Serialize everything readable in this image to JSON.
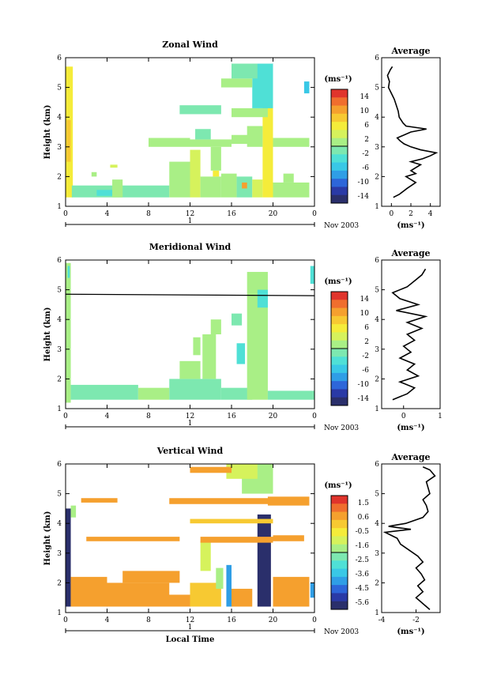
{
  "chart_data": [
    {
      "type": "heatmap",
      "title": "Zonal Wind",
      "ylabel": "Height (km)",
      "ylim": [
        1,
        6
      ],
      "xlim": [
        0,
        24
      ],
      "xticks": [
        "0",
        "4",
        "8",
        "12",
        "16",
        "20",
        "0"
      ],
      "yticks": [
        "1",
        "2",
        "3",
        "4",
        "5",
        "6"
      ],
      "date_label": "1",
      "month_label": "Nov 2003",
      "colorbar": {
        "unit": "(ms⁻¹)",
        "ticks": [
          "14",
          "10",
          "6",
          "2",
          "-2",
          "-6",
          "-10",
          "-14"
        ],
        "range": [
          -16,
          16
        ]
      },
      "cells": [
        {
          "x": [
            0,
            0.7
          ],
          "y": [
            1.3,
            5.7
          ],
          "v": 6
        },
        {
          "x": [
            0.1,
            0.5
          ],
          "y": [
            2.5,
            3.9
          ],
          "v": 9
        },
        {
          "x": [
            0.6,
            10
          ],
          "y": [
            1.3,
            1.7
          ],
          "v": -2
        },
        {
          "x": [
            3,
            4.5
          ],
          "y": [
            1.35,
            1.55
          ],
          "v": -3
        },
        {
          "x": [
            2.5,
            3
          ],
          "y": [
            2.0,
            2.15
          ],
          "v": 1
        },
        {
          "x": [
            4.5,
            5.5
          ],
          "y": [
            1.3,
            1.9
          ],
          "v": 2
        },
        {
          "x": [
            10,
            12
          ],
          "y": [
            1.3,
            2.5
          ],
          "v": 2
        },
        {
          "x": [
            12,
            13
          ],
          "y": [
            1.3,
            2.9
          ],
          "v": 4
        },
        {
          "x": [
            13,
            15
          ],
          "y": [
            1.3,
            2.0
          ],
          "v": 0
        },
        {
          "x": [
            14,
            15
          ],
          "y": [
            2.2,
            3.0
          ],
          "v": 2
        },
        {
          "x": [
            15,
            16.5
          ],
          "y": [
            1.3,
            2.1
          ],
          "v": 1
        },
        {
          "x": [
            16.5,
            18
          ],
          "y": [
            1.3,
            2.0
          ],
          "v": -1
        },
        {
          "x": [
            18,
            19
          ],
          "y": [
            1.3,
            1.9
          ],
          "v": 3
        },
        {
          "x": [
            19,
            20
          ],
          "y": [
            1.3,
            5.4
          ],
          "v": 5
        },
        {
          "x": [
            20,
            23.5
          ],
          "y": [
            1.3,
            1.8
          ],
          "v": 0
        },
        {
          "x": [
            21,
            22
          ],
          "y": [
            1.8,
            2.1
          ],
          "v": 2
        },
        {
          "x": [
            8,
            12
          ],
          "y": [
            3.0,
            3.3
          ],
          "v": 0
        },
        {
          "x": [
            12,
            16
          ],
          "y": [
            3.0,
            3.25
          ],
          "v": 1
        },
        {
          "x": [
            12.5,
            14
          ],
          "y": [
            3.25,
            3.6
          ],
          "v": -1
        },
        {
          "x": [
            16,
            18
          ],
          "y": [
            3.1,
            3.4
          ],
          "v": 1
        },
        {
          "x": [
            17.5,
            19
          ],
          "y": [
            3.0,
            3.7
          ],
          "v": 0
        },
        {
          "x": [
            20,
            23.5
          ],
          "y": [
            3.0,
            3.3
          ],
          "v": 2
        },
        {
          "x": [
            16,
            19.5
          ],
          "y": [
            4.0,
            4.3
          ],
          "v": 0
        },
        {
          "x": [
            11,
            15
          ],
          "y": [
            4.1,
            4.4
          ],
          "v": -2
        },
        {
          "x": [
            18,
            20
          ],
          "y": [
            4.3,
            5.8
          ],
          "v": -4
        },
        {
          "x": [
            15,
            18
          ],
          "y": [
            5.0,
            5.3
          ],
          "v": 0
        },
        {
          "x": [
            16,
            18.5
          ],
          "y": [
            5.3,
            5.8
          ],
          "v": -1
        },
        {
          "x": [
            23,
            23.5
          ],
          "y": [
            4.8,
            5.2
          ],
          "v": -6
        },
        {
          "x": [
            4.3,
            5
          ],
          "y": [
            2.3,
            2.4
          ],
          "v": 4
        },
        {
          "x": [
            14.2,
            14.8
          ],
          "y": [
            2.0,
            2.2
          ],
          "v": 6
        },
        {
          "x": [
            17,
            17.5
          ],
          "y": [
            1.6,
            1.8
          ],
          "v": 10
        }
      ],
      "profile": {
        "title": "Average",
        "xlim": [
          -1,
          5
        ],
        "xticks": [
          "0",
          "2",
          "4"
        ],
        "xlabel": "(ms⁻¹)",
        "heights": [
          1.3,
          1.4,
          1.6,
          1.8,
          2.0,
          2.1,
          2.2,
          2.4,
          2.5,
          2.6,
          2.7,
          2.8,
          2.9,
          3.0,
          3.1,
          3.2,
          3.3,
          3.5,
          3.6,
          3.7,
          3.8,
          4.0,
          4.2,
          4.4,
          4.6,
          4.8,
          5.0,
          5.2,
          5.4,
          5.6,
          5.7
        ],
        "values": [
          0.2,
          0.8,
          1.6,
          2.5,
          1.5,
          2.5,
          2.0,
          3.0,
          2.0,
          3.2,
          4.0,
          4.6,
          3.0,
          2.0,
          1.3,
          0.9,
          0.6,
          2.0,
          3.6,
          1.5,
          1.2,
          0.8,
          0.7,
          0.5,
          0.3,
          0.0,
          -0.3,
          -0.2,
          -0.4,
          -0.1,
          0.1
        ]
      }
    },
    {
      "type": "heatmap",
      "title": "Meridional Wind",
      "ylabel": "Height (km)",
      "ylim": [
        1,
        6
      ],
      "xlim": [
        0,
        24
      ],
      "xticks": [
        "0",
        "4",
        "8",
        "12",
        "16",
        "20",
        "0"
      ],
      "yticks": [
        "1",
        "2",
        "3",
        "4",
        "5",
        "6"
      ],
      "date_label": "1",
      "month_label": "Nov 2003",
      "colorbar": {
        "unit": "(ms⁻¹)",
        "ticks": [
          "14",
          "10",
          "6",
          "2",
          "-2",
          "-6",
          "-10",
          "-14"
        ],
        "range": [
          -16,
          16
        ]
      },
      "cells": [
        {
          "x": [
            0,
            0.5
          ],
          "y": [
            1.2,
            5.9
          ],
          "v": 1
        },
        {
          "x": [
            0.5,
            7
          ],
          "y": [
            1.3,
            1.8
          ],
          "v": -2
        },
        {
          "x": [
            7,
            10
          ],
          "y": [
            1.3,
            1.7
          ],
          "v": 0
        },
        {
          "x": [
            10,
            15
          ],
          "y": [
            1.3,
            2.0
          ],
          "v": -1
        },
        {
          "x": [
            15,
            18
          ],
          "y": [
            1.3,
            1.7
          ],
          "v": -2
        },
        {
          "x": [
            17.5,
            19.5
          ],
          "y": [
            1.3,
            5.6
          ],
          "v": 1
        },
        {
          "x": [
            18.5,
            19.5
          ],
          "y": [
            4.4,
            5.0
          ],
          "v": -4
        },
        {
          "x": [
            19.5,
            24
          ],
          "y": [
            1.3,
            1.6
          ],
          "v": -2
        },
        {
          "x": [
            11,
            13
          ],
          "y": [
            2.0,
            2.6
          ],
          "v": 0
        },
        {
          "x": [
            13.2,
            14.5
          ],
          "y": [
            2.0,
            3.5
          ],
          "v": 1
        },
        {
          "x": [
            12.3,
            13
          ],
          "y": [
            2.8,
            3.4
          ],
          "v": 0
        },
        {
          "x": [
            16.5,
            17.3
          ],
          "y": [
            2.5,
            3.2
          ],
          "v": -4
        },
        {
          "x": [
            14,
            15
          ],
          "y": [
            3.5,
            4.0
          ],
          "v": 0
        },
        {
          "x": [
            16,
            17
          ],
          "y": [
            3.8,
            4.2
          ],
          "v": -1
        },
        {
          "x": [
            23.6,
            24
          ],
          "y": [
            5.2,
            5.8
          ],
          "v": -3
        },
        {
          "x": [
            0.2,
            0.4
          ],
          "y": [
            5.4,
            5.8
          ],
          "v": -4
        }
      ],
      "hline": 4.85,
      "profile": {
        "title": "Average",
        "xlim": [
          -0.6,
          1
        ],
        "xticks": [
          "0",
          "1"
        ],
        "xlabel": "(ms⁻¹)",
        "heights": [
          1.3,
          1.5,
          1.7,
          1.9,
          2.1,
          2.3,
          2.5,
          2.7,
          2.9,
          3.1,
          3.3,
          3.5,
          3.7,
          3.9,
          4.1,
          4.3,
          4.5,
          4.7,
          4.9,
          5.1,
          5.3,
          5.5,
          5.7
        ],
        "values": [
          -0.3,
          0.1,
          0.3,
          -0.1,
          0.4,
          0.1,
          0.3,
          -0.1,
          0.2,
          0.0,
          0.3,
          0.1,
          0.5,
          0.1,
          0.6,
          -0.2,
          0.4,
          -0.1,
          -0.3,
          0.1,
          0.3,
          0.5,
          0.6
        ]
      }
    },
    {
      "type": "heatmap",
      "title": "Vertical Wind",
      "xlabel": "Local Time",
      "ylabel": "Height (km)",
      "ylim": [
        1,
        6
      ],
      "xlim": [
        0,
        24
      ],
      "xticks": [
        "0",
        "4",
        "8",
        "12",
        "16",
        "20",
        "0"
      ],
      "yticks": [
        "1",
        "2",
        "3",
        "4",
        "5",
        "6"
      ],
      "date_label": "1",
      "month_label": "Nov 2003",
      "colorbar": {
        "unit": "(ms⁻¹)",
        "ticks": [
          "1.5",
          "0.6",
          "-0.5",
          "-1.6",
          "-2.5",
          "-3.6",
          "-4.5",
          "-5.6"
        ],
        "range": [
          -6,
          2
        ]
      },
      "cells": [
        {
          "x": [
            0,
            0.5
          ],
          "y": [
            1.2,
            4.5
          ],
          "v": -6
        },
        {
          "x": [
            0.5,
            4
          ],
          "y": [
            1.2,
            2.2
          ],
          "v": 0.3
        },
        {
          "x": [
            1,
            10
          ],
          "y": [
            1.5,
            2.0
          ],
          "v": 0.8
        },
        {
          "x": [
            4,
            12
          ],
          "y": [
            1.2,
            1.6
          ],
          "v": 0.5
        },
        {
          "x": [
            5.5,
            11
          ],
          "y": [
            2.0,
            2.4
          ],
          "v": 0.3
        },
        {
          "x": [
            12,
            15
          ],
          "y": [
            1.2,
            2.0
          ],
          "v": 0.0
        },
        {
          "x": [
            15.5,
            16
          ],
          "y": [
            1.2,
            2.6
          ],
          "v": -4
        },
        {
          "x": [
            16,
            18
          ],
          "y": [
            1.2,
            1.8
          ],
          "v": 0.4
        },
        {
          "x": [
            18.5,
            19.8
          ],
          "y": [
            1.2,
            4.3
          ],
          "v": -6
        },
        {
          "x": [
            20,
            23.5
          ],
          "y": [
            1.2,
            2.2
          ],
          "v": 0.4
        },
        {
          "x": [
            14.5,
            15.2
          ],
          "y": [
            1.8,
            2.5
          ],
          "v": -2
        },
        {
          "x": [
            13,
            14
          ],
          "y": [
            2.4,
            3.4
          ],
          "v": -1
        },
        {
          "x": [
            1.5,
            5
          ],
          "y": [
            4.7,
            4.85
          ],
          "v": 0.5
        },
        {
          "x": [
            10,
            20
          ],
          "y": [
            4.65,
            4.85
          ],
          "v": 0.4
        },
        {
          "x": [
            19.5,
            23.5
          ],
          "y": [
            4.6,
            4.9
          ],
          "v": 0.3
        },
        {
          "x": [
            17,
            20
          ],
          "y": [
            5.0,
            6.0
          ],
          "v": -1.6
        },
        {
          "x": [
            15.5,
            18.5
          ],
          "y": [
            5.5,
            6.0
          ],
          "v": -1.2
        },
        {
          "x": [
            2,
            11
          ],
          "y": [
            3.4,
            3.55
          ],
          "v": 0.6
        },
        {
          "x": [
            13,
            20
          ],
          "y": [
            3.35,
            3.55
          ],
          "v": 0.5
        },
        {
          "x": [
            20,
            23
          ],
          "y": [
            3.4,
            3.6
          ],
          "v": 0.6
        },
        {
          "x": [
            12,
            20
          ],
          "y": [
            4.0,
            4.15
          ],
          "v": 0.2
        },
        {
          "x": [
            12,
            16
          ],
          "y": [
            5.7,
            5.9
          ],
          "v": 0.4
        },
        {
          "x": [
            23.6,
            24
          ],
          "y": [
            1.5,
            2.0
          ],
          "v": -4
        },
        {
          "x": [
            0.5,
            1
          ],
          "y": [
            4.2,
            4.6
          ],
          "v": -2
        }
      ],
      "profile": {
        "title": "Average",
        "xlim": [
          -4,
          -0.6
        ],
        "xticks": [
          "-4",
          "-2"
        ],
        "xlabel": "(ms⁻¹)",
        "heights": [
          1.1,
          1.3,
          1.5,
          1.7,
          1.9,
          2.1,
          2.3,
          2.5,
          2.7,
          2.9,
          3.1,
          3.3,
          3.5,
          3.7,
          3.8,
          3.9,
          4.0,
          4.2,
          4.4,
          4.6,
          4.8,
          5.0,
          5.2,
          5.4,
          5.6,
          5.8,
          5.9
        ],
        "values": [
          -1.2,
          -1.6,
          -2.0,
          -1.6,
          -1.9,
          -1.5,
          -1.7,
          -2.0,
          -1.6,
          -1.9,
          -2.4,
          -2.9,
          -3.1,
          -3.8,
          -2.3,
          -3.6,
          -2.6,
          -1.6,
          -1.3,
          -1.4,
          -1.6,
          -1.2,
          -1.3,
          -1.4,
          -0.9,
          -1.2,
          -1.6
        ]
      }
    }
  ]
}
